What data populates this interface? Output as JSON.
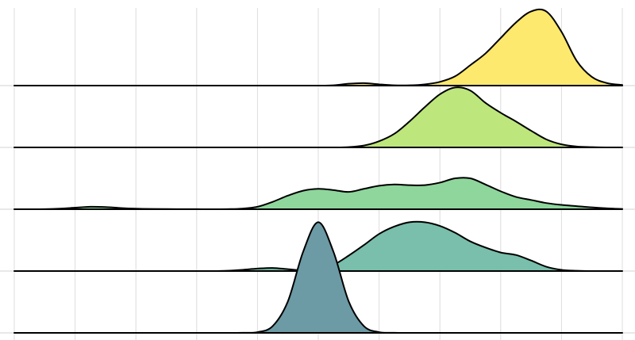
{
  "chart_data": {
    "type": "ridgeline",
    "x": [
      0,
      0.25,
      0.5,
      0.75,
      1,
      1.25,
      1.5,
      1.75,
      2,
      2.25,
      2.5,
      2.75,
      3,
      3.25,
      3.5,
      3.75,
      4,
      4.25,
      4.5,
      4.75,
      5,
      5.25,
      5.5,
      5.75,
      6,
      6.25,
      6.5,
      6.75,
      7,
      7.25,
      7.5,
      7.75,
      8,
      8.25,
      8.5,
      8.75,
      9,
      9.25,
      9.5,
      9.75,
      10
    ],
    "xlim": [
      0,
      10
    ],
    "xticks": [
      0,
      1,
      2,
      3,
      4,
      5,
      6,
      7,
      8,
      9,
      10
    ],
    "grid": true,
    "series": [
      {
        "color": "#6c9aa5",
        "values": [
          0,
          0,
          0,
          0,
          0,
          0,
          0,
          0,
          0,
          0,
          0,
          0,
          0,
          0,
          0,
          0.002,
          0.012,
          0.11,
          0.51,
          1.31,
          1.79,
          1.31,
          0.51,
          0.11,
          0.012,
          0.002,
          0,
          0,
          0,
          0,
          0,
          0,
          0,
          0,
          0,
          0,
          0,
          0,
          0,
          0,
          0
        ]
      },
      {
        "color": "#79bfab",
        "values": [
          0,
          0,
          0,
          0,
          0,
          0,
          0,
          0,
          0,
          0,
          0,
          0,
          0,
          0,
          0.005,
          0.02,
          0.04,
          0.05,
          0.03,
          0.01,
          0.03,
          0.1,
          0.25,
          0.42,
          0.6,
          0.72,
          0.79,
          0.79,
          0.73,
          0.62,
          0.48,
          0.38,
          0.3,
          0.26,
          0.17,
          0.07,
          0.02,
          0.005,
          0,
          0,
          0
        ]
      },
      {
        "color": "#8ed69c",
        "values": [
          0,
          0,
          0.002,
          0.01,
          0.025,
          0.04,
          0.035,
          0.02,
          0.01,
          0.005,
          0.003,
          0.002,
          0.001,
          0,
          0.002,
          0.01,
          0.04,
          0.12,
          0.22,
          0.3,
          0.33,
          0.31,
          0.28,
          0.33,
          0.38,
          0.4,
          0.39,
          0.39,
          0.43,
          0.5,
          0.5,
          0.4,
          0.29,
          0.2,
          0.15,
          0.1,
          0.07,
          0.05,
          0.03,
          0.015,
          0.005
        ]
      },
      {
        "color": "#bde67c",
        "values": [
          0,
          0,
          0,
          0,
          0,
          0,
          0,
          0,
          0,
          0,
          0,
          0,
          0,
          0,
          0,
          0,
          0,
          0,
          0,
          0,
          0,
          0,
          0.005,
          0.03,
          0.1,
          0.22,
          0.42,
          0.65,
          0.86,
          0.97,
          0.92,
          0.72,
          0.56,
          0.42,
          0.27,
          0.13,
          0.05,
          0.015,
          0.005,
          0,
          0
        ]
      },
      {
        "color": "#fde96d",
        "values": [
          0,
          0,
          0,
          0,
          0,
          0,
          0,
          0,
          0,
          0,
          0,
          0,
          0,
          0,
          0,
          0,
          0,
          0,
          0,
          0,
          0,
          0.005,
          0.03,
          0.04,
          0.02,
          0.005,
          0.005,
          0.02,
          0.06,
          0.15,
          0.33,
          0.52,
          0.77,
          1.02,
          1.2,
          1.2,
          0.87,
          0.4,
          0.14,
          0.04,
          0.01
        ]
      }
    ]
  }
}
